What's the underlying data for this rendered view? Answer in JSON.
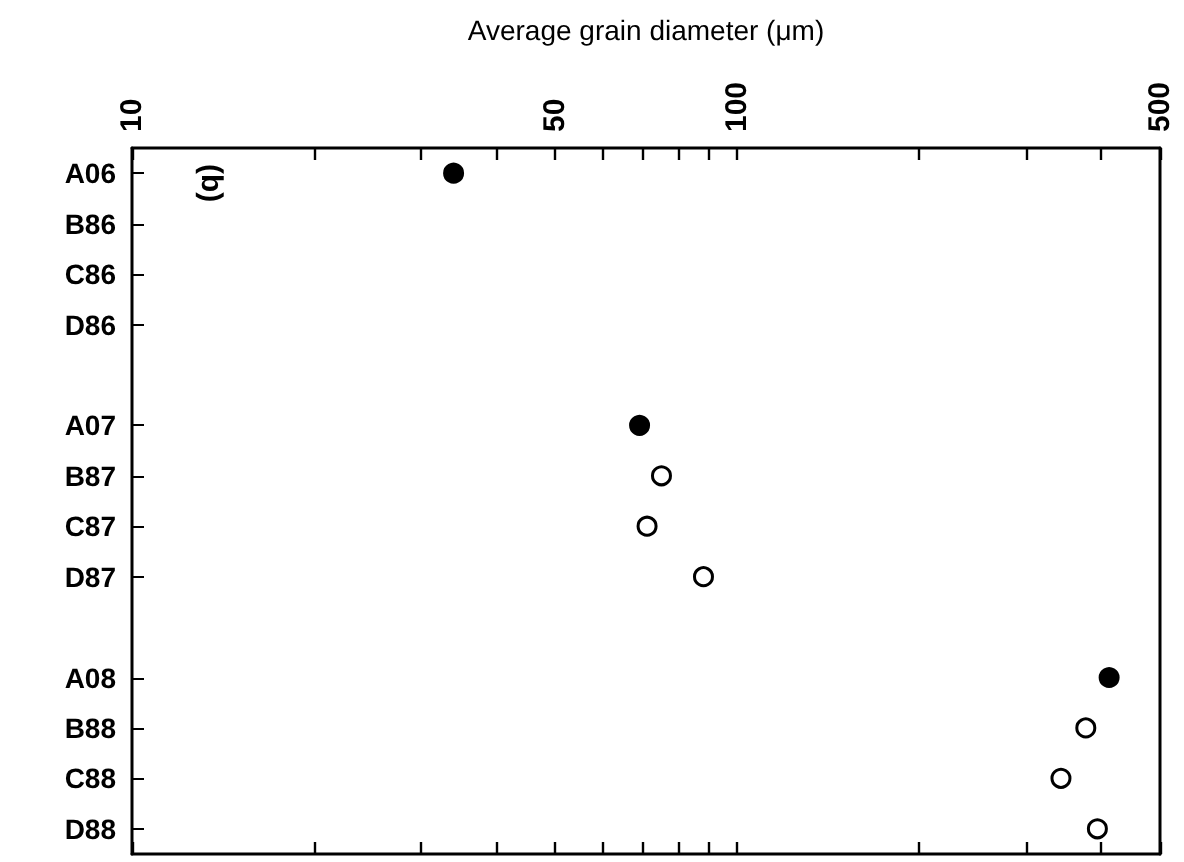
{
  "chart_data": {
    "type": "scatter",
    "xlabel": "Average grain diameter (μm)",
    "categories": [
      "A06",
      "B86",
      "C86",
      "D86",
      null,
      "A07",
      "B87",
      "C87",
      "D87",
      null,
      "A08",
      "B88",
      "C88",
      "D88"
    ],
    "orientation": "horizontal",
    "log": "x",
    "xlim": [
      10,
      500
    ],
    "xticks": [
      10,
      {
        "value": 20,
        "label": null
      },
      {
        "value": 30,
        "label": null
      },
      {
        "value": 40,
        "label": null
      },
      50,
      {
        "value": 60,
        "label": null
      },
      {
        "value": 70,
        "label": null
      },
      {
        "value": 80,
        "label": null
      },
      {
        "value": 90,
        "label": null
      },
      100,
      {
        "value": 200,
        "label": null
      },
      {
        "value": 300,
        "label": null
      },
      {
        "value": 400,
        "label": null
      },
      500
    ],
    "series": [
      {
        "color": "#000000",
        "values": [
          34,
          null,
          null,
          null,
          null,
          69,
          null,
          null,
          null,
          null,
          412,
          null,
          null,
          null
        ]
      },
      {
        "color": "#ffffff",
        "values": [
          null,
          null,
          null,
          null,
          null,
          null,
          75,
          71,
          88,
          null,
          null,
          377,
          343,
          394
        ]
      }
    ],
    "marker": "circle",
    "annotations": [
      "(b)"
    ]
  }
}
